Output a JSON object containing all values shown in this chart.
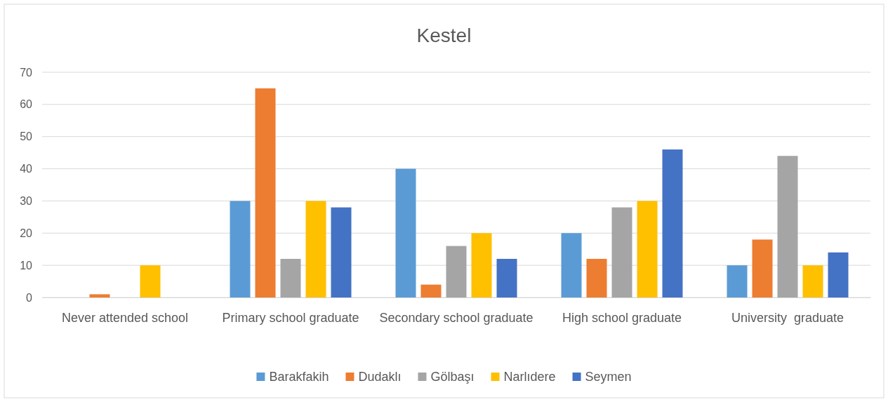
{
  "chart_data": {
    "type": "bar",
    "title": "Kestel",
    "categories": [
      "Never attended school",
      "Primary school graduate",
      "Secondary school graduate",
      "High school graduate",
      "University  graduate"
    ],
    "series": [
      {
        "name": "Barakfakih",
        "color": "#5b9bd5",
        "values": [
          0,
          30,
          40,
          20,
          10
        ]
      },
      {
        "name": "Dudaklı",
        "color": "#ed7d31",
        "values": [
          1,
          65,
          4,
          12,
          18
        ]
      },
      {
        "name": "Gölbaşı",
        "color": "#a5a5a5",
        "values": [
          0,
          12,
          16,
          28,
          44
        ]
      },
      {
        "name": "Narlıdere",
        "color": "#ffc000",
        "values": [
          10,
          30,
          20,
          30,
          10
        ]
      },
      {
        "name": "Seymen",
        "color": "#4472c4",
        "values": [
          0,
          28,
          12,
          46,
          14
        ]
      }
    ],
    "ylim": [
      0,
      70
    ],
    "yticks": [
      0,
      10,
      20,
      30,
      40,
      50,
      60,
      70
    ],
    "grid": "y",
    "legend": "bottom"
  }
}
